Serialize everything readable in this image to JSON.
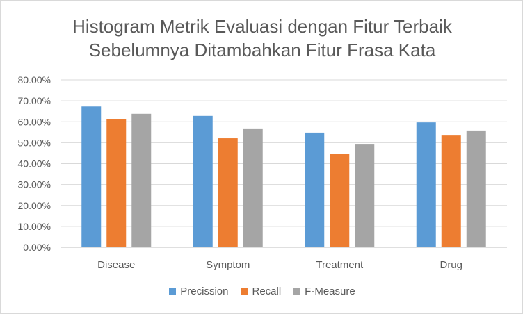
{
  "chart_data": {
    "type": "bar",
    "title_lines": [
      "Histogram Metrik Evaluasi dengan Fitur Terbaik",
      "Sebelumnya Ditambahkan Fitur Frasa Kata"
    ],
    "categories": [
      "Disease",
      "Symptom",
      "Treatment",
      "Drug"
    ],
    "series": [
      {
        "name": "Precission",
        "color": "#5b9bd5",
        "values": [
          67.3,
          62.8,
          54.8,
          59.7
        ]
      },
      {
        "name": "Recall",
        "color": "#ed7d31",
        "values": [
          61.4,
          52.1,
          44.8,
          53.4
        ]
      },
      {
        "name": "F-Measure",
        "color": "#a5a5a5",
        "values": [
          63.8,
          56.8,
          49.1,
          55.8
        ]
      }
    ],
    "ylim": [
      0,
      80
    ],
    "ytick_labels": [
      "0.00%",
      "10.00%",
      "20.00%",
      "30.00%",
      "40.00%",
      "50.00%",
      "60.00%",
      "70.00%",
      "80.00%"
    ],
    "grid": true,
    "legend_position": "bottom"
  }
}
